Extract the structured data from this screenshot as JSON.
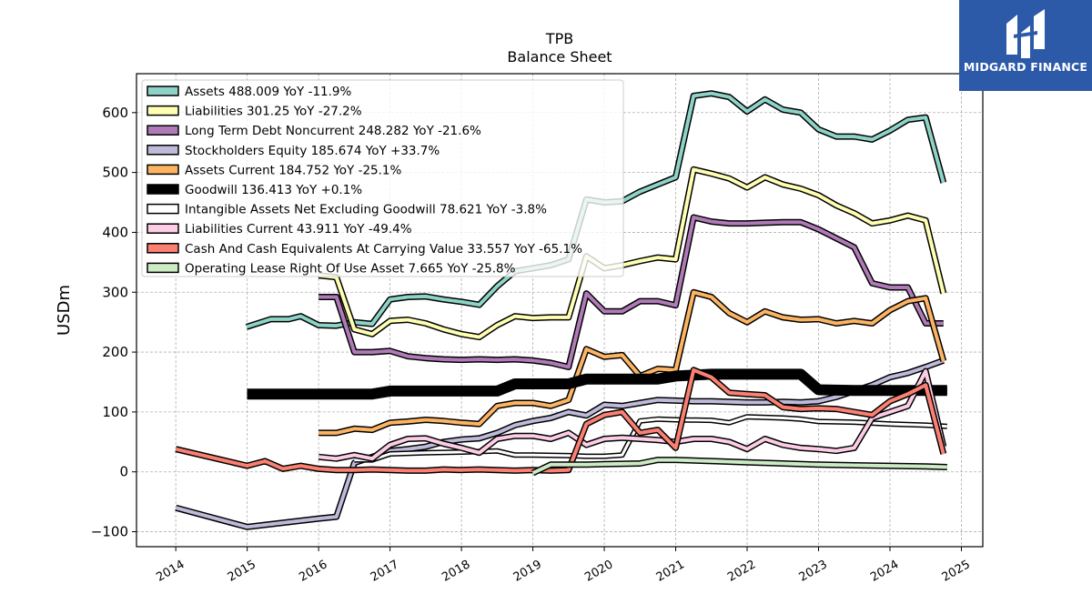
{
  "chart_data": {
    "type": "line",
    "title": "TPB",
    "subtitle": "Balance  Sheet",
    "xlabel": "",
    "ylabel": "USDm",
    "xlim": [
      2013.45,
      2025.3
    ],
    "ylim": [
      -125,
      665
    ],
    "yticks": [
      -100,
      0,
      100,
      200,
      300,
      400,
      500,
      600
    ],
    "ytick_labels": [
      "−100",
      "0",
      "100",
      "200",
      "300",
      "400",
      "500",
      "600"
    ],
    "xticks": [
      2014,
      2015,
      2016,
      2017,
      2018,
      2019,
      2020,
      2021,
      2022,
      2023,
      2024,
      2025
    ],
    "xtick_labels": [
      "2014",
      "2015",
      "2016",
      "2017",
      "2018",
      "2019",
      "2020",
      "2021",
      "2022",
      "2023",
      "2024",
      "2025"
    ],
    "grid": true,
    "legend_position": "upper-left",
    "series": [
      {
        "name": "Assets",
        "legend": "Assets  488.009 YoY -11.9%",
        "color": "#8dd3c7",
        "width": 4,
        "x": [
          2014.99,
          2015.33,
          2015.58,
          2015.75,
          2016.0,
          2016.25,
          2016.5,
          2016.75,
          2017.0,
          2017.25,
          2017.5,
          2017.75,
          2018.0,
          2018.25,
          2018.5,
          2018.75,
          2019.0,
          2019.25,
          2019.5,
          2019.75,
          2020.0,
          2020.25,
          2020.5,
          2020.75,
          2021.0,
          2021.25,
          2021.5,
          2021.75,
          2022.0,
          2022.25,
          2022.5,
          2022.75,
          2023.0,
          2023.25,
          2023.5,
          2023.75,
          2024.0,
          2024.25,
          2024.5,
          2024.75
        ],
        "y": [
          242,
          255,
          255,
          260,
          245,
          244,
          250,
          247,
          288,
          292,
          293,
          288,
          284,
          279,
          310,
          335,
          340,
          345,
          355,
          455,
          450,
          452,
          468,
          480,
          492,
          628,
          632,
          626,
          602,
          622,
          605,
          600,
          572,
          560,
          560,
          555,
          570,
          588,
          592,
          483
        ]
      },
      {
        "name": "Liabilities",
        "legend": "Liabilities  301.25 YoY -27.2%",
        "color": "#ffffb3",
        "width": 4,
        "x": [
          2016.0,
          2016.25,
          2016.5,
          2016.75,
          2017.0,
          2017.25,
          2017.5,
          2017.75,
          2018.0,
          2018.25,
          2018.5,
          2018.75,
          2019.0,
          2019.25,
          2019.5,
          2019.75,
          2020.0,
          2020.25,
          2020.5,
          2020.75,
          2021.0,
          2021.25,
          2021.5,
          2021.75,
          2022.0,
          2022.25,
          2022.5,
          2022.75,
          2023.0,
          2023.25,
          2023.5,
          2023.75,
          2024.0,
          2024.25,
          2024.5,
          2024.75
        ],
        "y": [
          328,
          325,
          238,
          230,
          252,
          254,
          248,
          238,
          230,
          225,
          245,
          260,
          257,
          258,
          258,
          360,
          340,
          345,
          352,
          358,
          355,
          505,
          498,
          490,
          475,
          492,
          480,
          473,
          462,
          445,
          432,
          415,
          420,
          428,
          420,
          298
        ]
      },
      {
        "name": "Long Term Debt Noncurrent",
        "legend": "Long Term Debt Noncurrent  248.282 YoY -21.6%",
        "color": "#bebada",
        "fill": "#b07ab8",
        "width": 4,
        "x": [
          2016.0,
          2016.25,
          2016.5,
          2016.75,
          2017.0,
          2017.25,
          2017.5,
          2017.75,
          2018.0,
          2018.25,
          2018.5,
          2018.75,
          2019.0,
          2019.25,
          2019.5,
          2019.75,
          2020.0,
          2020.25,
          2020.5,
          2020.75,
          2021.0,
          2021.25,
          2021.5,
          2021.75,
          2022.0,
          2022.25,
          2022.5,
          2022.75,
          2023.0,
          2023.25,
          2023.5,
          2023.75,
          2024.0,
          2024.25,
          2024.5,
          2024.75
        ],
        "y": [
          292,
          292,
          200,
          200,
          202,
          193,
          190,
          188,
          187,
          188,
          187,
          188,
          186,
          182,
          175,
          298,
          268,
          268,
          285,
          285,
          278,
          425,
          418,
          415,
          415,
          416,
          417,
          417,
          405,
          390,
          375,
          315,
          308,
          308,
          248,
          248
        ]
      },
      {
        "name": "Stockholders Equity",
        "legend": "Stockholders Equity  185.674 YoY +33.7%",
        "color": "#bebada",
        "width": 4,
        "x": [
          2014.0,
          2015.0,
          2016.0,
          2016.25,
          2016.5,
          2016.75,
          2017.0,
          2017.25,
          2017.5,
          2017.75,
          2018.0,
          2018.25,
          2018.5,
          2018.75,
          2019.0,
          2019.25,
          2019.5,
          2019.75,
          2020.0,
          2020.25,
          2020.5,
          2020.75,
          2021.0,
          2021.25,
          2021.5,
          2021.75,
          2022.0,
          2022.25,
          2022.5,
          2022.75,
          2023.0,
          2023.25,
          2023.5,
          2023.75,
          2024.0,
          2024.25,
          2024.5,
          2024.75
        ],
        "y": [
          -60,
          -92,
          -78,
          -75,
          15,
          25,
          35,
          38,
          42,
          50,
          54,
          56,
          65,
          78,
          85,
          90,
          100,
          94,
          112,
          110,
          115,
          120,
          119,
          118,
          118,
          117,
          116,
          116,
          117,
          116,
          118,
          125,
          135,
          145,
          158,
          165,
          175,
          186
        ]
      },
      {
        "name": "Assets Current",
        "legend": "Assets Current  184.752 YoY -25.1%",
        "color": "#fdb462",
        "width": 4,
        "x": [
          2016.0,
          2016.25,
          2016.5,
          2016.75,
          2017.0,
          2017.25,
          2017.5,
          2017.75,
          2018.0,
          2018.25,
          2018.5,
          2018.75,
          2019.0,
          2019.25,
          2019.5,
          2019.75,
          2020.0,
          2020.25,
          2020.5,
          2020.75,
          2021.0,
          2021.25,
          2021.5,
          2021.75,
          2022.0,
          2022.25,
          2022.5,
          2022.75,
          2023.0,
          2023.25,
          2023.5,
          2023.75,
          2024.0,
          2024.25,
          2024.5,
          2024.75
        ],
        "y": [
          65,
          65,
          72,
          70,
          82,
          84,
          87,
          85,
          82,
          80,
          110,
          115,
          115,
          110,
          120,
          205,
          192,
          195,
          160,
          172,
          170,
          300,
          292,
          265,
          250,
          268,
          258,
          254,
          255,
          248,
          252,
          248,
          270,
          285,
          290,
          185
        ]
      },
      {
        "name": "Goodwill",
        "legend": "Goodwill  136.413 YoY +0.1%",
        "color": "#000000",
        "width": 9,
        "x": [
          2015.0,
          2016.0,
          2016.75,
          2017.0,
          2017.75,
          2018.0,
          2018.5,
          2018.75,
          2019.5,
          2019.75,
          2020.75,
          2021.0,
          2021.5,
          2022.0,
          2022.75,
          2023.0,
          2023.5,
          2024.0,
          2024.5,
          2024.8
        ],
        "y": [
          130,
          130,
          130,
          135,
          135,
          135,
          135,
          147,
          147,
          155,
          155,
          160,
          163,
          163,
          163,
          137,
          136,
          136,
          136,
          136
        ]
      },
      {
        "name": "Intangible Assets Net Excluding Goodwill",
        "legend": "Intangible Assets Net Excluding Goodwill  78.621 YoY -3.8%",
        "color": "#ffffff",
        "width": 3,
        "x": [
          2016.5,
          2016.75,
          2017.0,
          2017.5,
          2018.0,
          2018.5,
          2018.75,
          2019.0,
          2019.5,
          2019.75,
          2020.0,
          2020.25,
          2020.5,
          2020.75,
          2021.0,
          2021.5,
          2021.75,
          2022.0,
          2022.5,
          2022.75,
          2023.0,
          2023.5,
          2024.0,
          2024.5,
          2024.8
        ],
        "y": [
          20,
          20,
          30,
          32,
          33,
          35,
          28,
          28,
          27,
          26,
          26,
          28,
          85,
          88,
          87,
          86,
          82,
          92,
          90,
          88,
          84,
          83,
          80,
          78,
          76
        ]
      },
      {
        "name": "Liabilities Current",
        "legend": "Liabilities Current  43.911 YoY -49.4%",
        "color": "#fccde5",
        "width": 4,
        "x": [
          2016.0,
          2016.25,
          2016.5,
          2016.75,
          2017.0,
          2017.25,
          2017.5,
          2017.75,
          2018.0,
          2018.25,
          2018.5,
          2018.75,
          2019.0,
          2019.25,
          2019.5,
          2019.75,
          2020.0,
          2020.25,
          2020.5,
          2020.75,
          2021.0,
          2021.25,
          2021.5,
          2021.75,
          2022.0,
          2022.25,
          2022.5,
          2022.75,
          2023.0,
          2023.25,
          2023.5,
          2023.75,
          2024.0,
          2024.25,
          2024.5,
          2024.75
        ],
        "y": [
          25,
          22,
          28,
          22,
          45,
          55,
          56,
          47,
          40,
          32,
          55,
          60,
          60,
          55,
          65,
          45,
          55,
          57,
          55,
          53,
          50,
          55,
          55,
          50,
          38,
          55,
          45,
          40,
          38,
          35,
          40,
          90,
          100,
          110,
          168,
          42
        ]
      },
      {
        "name": "Cash And Cash Equivalents At Carrying Value",
        "legend": "Cash And Cash Equivalents At Carrying Value  33.557 YoY -65.1%",
        "color": "#fb8072",
        "width": 4,
        "x": [
          2014.0,
          2015.0,
          2015.25,
          2015.5,
          2015.75,
          2016.0,
          2016.25,
          2016.5,
          2016.75,
          2017.0,
          2017.25,
          2017.5,
          2017.75,
          2018.0,
          2018.25,
          2018.5,
          2018.75,
          2019.0,
          2019.25,
          2019.5,
          2019.75,
          2020.0,
          2020.25,
          2020.5,
          2020.75,
          2021.0,
          2021.25,
          2021.5,
          2021.75,
          2022.0,
          2022.25,
          2022.5,
          2022.75,
          2023.0,
          2023.25,
          2023.5,
          2023.75,
          2024.0,
          2024.25,
          2024.5,
          2024.75
        ],
        "y": [
          38,
          10,
          18,
          5,
          10,
          5,
          3,
          3,
          4,
          3,
          2,
          2,
          4,
          3,
          4,
          3,
          2,
          3,
          2,
          3,
          80,
          95,
          100,
          65,
          70,
          40,
          170,
          158,
          132,
          130,
          128,
          108,
          105,
          106,
          105,
          100,
          95,
          118,
          130,
          145,
          30
        ]
      },
      {
        "name": "Operating Lease Right Of Use Asset",
        "legend": "Operating Lease Right Of Use Asset  7.665 YoY -25.8%",
        "color": "#ccebc5",
        "width": 4,
        "x": [
          2019.0,
          2019.25,
          2019.5,
          2019.75,
          2020.0,
          2020.5,
          2020.75,
          2021.0,
          2021.5,
          2022.0,
          2022.5,
          2023.0,
          2023.5,
          2024.0,
          2024.5,
          2024.8
        ],
        "y": [
          -2,
          12,
          12,
          12,
          13,
          14,
          20,
          20,
          18,
          16,
          14,
          12,
          11,
          10,
          9,
          8
        ]
      }
    ]
  },
  "logo": {
    "text": "MIDGARD FINANCE"
  }
}
